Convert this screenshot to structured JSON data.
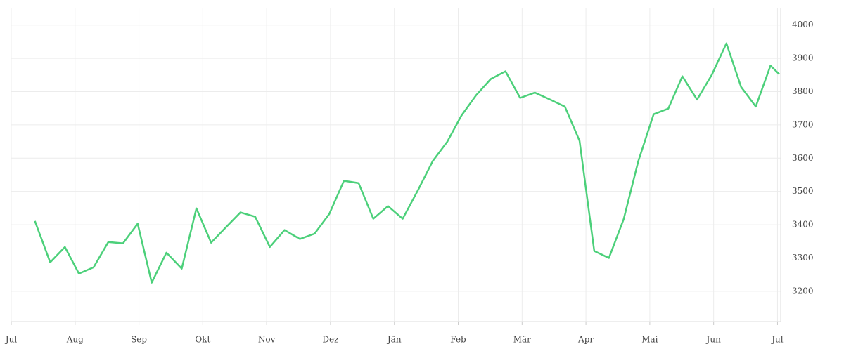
{
  "chart_data": {
    "type": "line",
    "x": [
      0.37,
      0.61,
      0.84,
      1.06,
      1.29,
      1.52,
      1.75,
      1.98,
      2.2,
      2.43,
      2.67,
      2.9,
      3.13,
      3.36,
      3.59,
      3.82,
      4.05,
      4.28,
      4.52,
      4.75,
      4.98,
      5.21,
      5.44,
      5.67,
      5.9,
      6.13,
      6.37,
      6.6,
      6.83,
      7.05,
      7.28,
      7.51,
      7.74,
      7.97,
      8.2,
      8.44,
      8.67,
      8.9,
      9.13,
      9.36,
      9.59,
      9.82,
      10.06,
      10.29,
      10.51,
      10.74,
      10.97,
      11.2,
      11.43,
      11.66,
      11.89,
      12.03
    ],
    "values": [
      3411,
      3287,
      3333,
      3253,
      3272,
      3348,
      3344,
      3403,
      3226,
      3316,
      3268,
      3449,
      3346,
      3392,
      3437,
      3424,
      3333,
      3384,
      3357,
      3373,
      3432,
      3532,
      3525,
      3418,
      3456,
      3418,
      3504,
      3591,
      3650,
      3728,
      3789,
      3838,
      3861,
      3781,
      3797,
      3776,
      3755,
      3652,
      3321,
      3300,
      3416,
      3591,
      3732,
      3749,
      3846,
      3776,
      3850,
      3945,
      3814,
      3755,
      3878,
      3852
    ],
    "color": "#4cd07a",
    "xlim": [
      0,
      12.05
    ],
    "xticks": [
      {
        "value": 0,
        "label": "Jul"
      },
      {
        "value": 1,
        "label": "Aug"
      },
      {
        "value": 2,
        "label": "Sep"
      },
      {
        "value": 3,
        "label": "Okt"
      },
      {
        "value": 4,
        "label": "Nov"
      },
      {
        "value": 5,
        "label": "Dez"
      },
      {
        "value": 6,
        "label": "Jän"
      },
      {
        "value": 7,
        "label": "Feb"
      },
      {
        "value": 8,
        "label": "Mär"
      },
      {
        "value": 9,
        "label": "Apr"
      },
      {
        "value": 10,
        "label": "Mai"
      },
      {
        "value": 11,
        "label": "Jun"
      },
      {
        "value": 12,
        "label": "Jul"
      }
    ],
    "ylim": [
      3109,
      4050
    ],
    "yticks": [
      3200,
      3300,
      3400,
      3500,
      3600,
      3700,
      3800,
      3900,
      4000
    ],
    "grid": true
  }
}
